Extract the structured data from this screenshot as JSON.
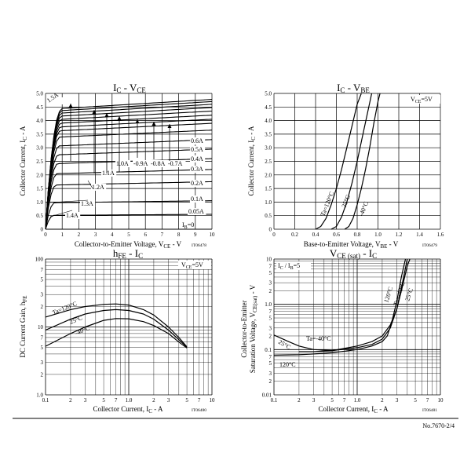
{
  "footer": {
    "doc_no": "No.7670-2/4"
  },
  "chart_data": [
    {
      "type": "line",
      "title": "IC - VCE",
      "title_base": "I",
      "title_sub1": "C",
      "title_dash": " - V",
      "title_sub2": "CE",
      "xlabel_pre": "Collector-to-Emitter Voltage, V",
      "xlabel_sub": "CE",
      "xlabel_post": " - V",
      "ylabel_pre": "Collector Current, I",
      "ylabel_sub": "C",
      "ylabel_post": " - A",
      "code": "IT06478",
      "xlim": [
        0,
        10
      ],
      "ylim": [
        0,
        5
      ],
      "x_ticks": [
        "0",
        "1",
        "2",
        "3",
        "4",
        "5",
        "6",
        "7",
        "8",
        "9",
        "10"
      ],
      "y_ticks": [
        "0",
        "0.5",
        "1.0",
        "1.5",
        "2.0",
        "2.5",
        "3.0",
        "3.5",
        "4.0",
        "4.5",
        "5.0"
      ],
      "grid": true,
      "series": [
        {
          "name": "1.5A",
          "ic": 4.78
        },
        {
          "name": "1.4A",
          "ic": 4.7
        },
        {
          "name": "1.3A",
          "ic": 4.6
        },
        {
          "name": "1.2A",
          "ic": 4.48
        },
        {
          "name": "1.1A",
          "ic": 4.35
        },
        {
          "name": "1.0A",
          "ic": 4.2
        },
        {
          "name": "0.9A",
          "ic": 4.05
        },
        {
          "name": "0.8A",
          "ic": 3.9
        },
        {
          "name": "0.7A",
          "ic": 3.65
        },
        {
          "name": "0.6A",
          "ic": 3.3
        },
        {
          "name": "0.5A",
          "ic": 2.95
        },
        {
          "name": "0.4A",
          "ic": 2.6
        },
        {
          "name": "0.3A",
          "ic": 2.2
        },
        {
          "name": "0.2A",
          "ic": 1.75
        },
        {
          "name": "0.1A",
          "ic": 1.05
        },
        {
          "name": "0.05A",
          "ic": 0.55
        },
        {
          "name": "IB=0",
          "ic": 0.0
        }
      ],
      "curve_labels": [
        "1.5A",
        "1.4A",
        "1.3A",
        "1.2A",
        "1.1A",
        "1.0A",
        "-0.9A",
        "-0.8A",
        "-0.7A",
        "0.6A",
        "0.5A",
        "0.4A",
        "0.3A",
        "0.2A",
        "0.1A",
        "0.05A"
      ],
      "ib0": {
        "base": "I",
        "sub": "B",
        "post": "=0"
      }
    },
    {
      "type": "line",
      "title": "IC - VBE",
      "title_base": "I",
      "title_sub1": "C",
      "title_dash": " - V",
      "title_sub2": "BE",
      "xlabel_pre": "Base-to-Emitter Voltage, V",
      "xlabel_sub": "BE",
      "xlabel_post": " - V",
      "ylabel_pre": "Collector Current, I",
      "ylabel_sub": "C",
      "ylabel_post": " - A",
      "code": "IT06479",
      "condition": {
        "base": "V",
        "sub": "CE",
        "post": "=5V"
      },
      "xlim": [
        0,
        1.6
      ],
      "ylim": [
        0,
        5
      ],
      "x_ticks": [
        "0",
        "0.2",
        "0.4",
        "0.6",
        "0.8",
        "1.0",
        "1.2",
        "1.4",
        "1.6"
      ],
      "y_ticks": [
        "0",
        "0.5",
        "1.0",
        "1.5",
        "2.0",
        "2.5",
        "3.0",
        "3.5",
        "4.0",
        "4.5",
        "5.0"
      ],
      "grid": true,
      "series": [
        {
          "name": "Ta=120°C",
          "x": [
            0.4,
            0.45,
            0.5,
            0.55,
            0.6,
            0.65,
            0.7,
            0.75,
            0.8,
            0.84
          ],
          "y": [
            0,
            0.1,
            0.4,
            0.9,
            1.5,
            2.2,
            3.0,
            3.8,
            4.6,
            5.0
          ]
        },
        {
          "name": "25°C",
          "x": [
            0.55,
            0.6,
            0.65,
            0.7,
            0.75,
            0.8,
            0.85,
            0.9,
            0.94
          ],
          "y": [
            0,
            0.1,
            0.45,
            1.0,
            1.7,
            2.5,
            3.4,
            4.3,
            5.0
          ]
        },
        {
          "name": "-40°C",
          "x": [
            0.68,
            0.72,
            0.76,
            0.8,
            0.84,
            0.88,
            0.92,
            0.96,
            1.0,
            1.02
          ],
          "y": [
            0,
            0.1,
            0.4,
            0.9,
            1.5,
            2.2,
            3.0,
            3.9,
            4.7,
            5.0
          ]
        }
      ]
    },
    {
      "type": "line",
      "title": "hFE - IC",
      "title_base": "h",
      "title_sub1": "FE",
      "title_dash": " - I",
      "title_sub2": "C",
      "xlabel_pre": "Collector Current, I",
      "xlabel_sub": "C",
      "xlabel_post": " - A",
      "ylabel_pre": "DC Current Gain, h",
      "ylabel_sub": "FE",
      "ylabel_post": "",
      "code": "IT06480",
      "condition": {
        "base": "V",
        "sub": "CE",
        "post": "=5V"
      },
      "x_scale": "log",
      "y_scale": "log",
      "xlim": [
        0.1,
        10
      ],
      "ylim": [
        1,
        100
      ],
      "x_ticks": [
        {
          "v": 0.1,
          "t": "0.1"
        },
        {
          "v": 0.2,
          "t": "2"
        },
        {
          "v": 0.3,
          "t": "3"
        },
        {
          "v": 0.5,
          "t": "5"
        },
        {
          "v": 0.7,
          "t": "7"
        },
        {
          "v": 1,
          "t": "1.0"
        },
        {
          "v": 2,
          "t": "2"
        },
        {
          "v": 3,
          "t": "3"
        },
        {
          "v": 5,
          "t": "5"
        },
        {
          "v": 7,
          "t": "7"
        },
        {
          "v": 10,
          "t": "10"
        }
      ],
      "y_ticks": [
        {
          "v": 1,
          "t": "1.0"
        },
        {
          "v": 2,
          "t": "2"
        },
        {
          "v": 3,
          "t": "3"
        },
        {
          "v": 5,
          "t": "5"
        },
        {
          "v": 7,
          "t": "7"
        },
        {
          "v": 10,
          "t": "10"
        },
        {
          "v": 20,
          "t": "2"
        },
        {
          "v": 30,
          "t": "3"
        },
        {
          "v": 50,
          "t": "5"
        },
        {
          "v": 70,
          "t": "7"
        },
        {
          "v": 100,
          "t": "100"
        }
      ],
      "grid": true,
      "series": [
        {
          "name": "Ta=120°C",
          "x": [
            0.1,
            0.2,
            0.3,
            0.5,
            0.7,
            1.0,
            1.5,
            2,
            3,
            4,
            5
          ],
          "y": [
            14,
            18,
            20,
            21.5,
            21.8,
            21,
            18,
            15,
            10,
            7,
            5.1
          ]
        },
        {
          "name": "25°C",
          "x": [
            0.1,
            0.2,
            0.3,
            0.5,
            0.7,
            1.0,
            1.5,
            2,
            3,
            4,
            5
          ],
          "y": [
            9,
            13,
            15.5,
            17.5,
            18,
            17.5,
            15.5,
            13,
            9,
            6.5,
            5.0
          ]
        },
        {
          "name": "-40°C",
          "x": [
            0.1,
            0.2,
            0.3,
            0.5,
            0.7,
            1.0,
            1.5,
            2,
            3,
            4,
            5
          ],
          "y": [
            5.2,
            8,
            10,
            12.5,
            13.3,
            13.2,
            12,
            10.5,
            8,
            6,
            4.9
          ]
        }
      ]
    },
    {
      "type": "line",
      "title": "VCE (sat) - IC",
      "title_base": "V",
      "title_sub1": "CE (sat)",
      "title_dash": " - I",
      "title_sub2": "C",
      "xlabel_pre": "Collector Current, I",
      "xlabel_sub": "C",
      "xlabel_post": " - A",
      "ylabel1": "Collector-to-Emitter",
      "ylabel_pre": "Saturation Voltage, V",
      "ylabel_sub": "CE(sat)",
      "ylabel_post": " - V",
      "code": "IT06481",
      "condition": {
        "base": "I",
        "sub": "C",
        "mid": " / I",
        "sub2": "B",
        "post": "=5"
      },
      "x_scale": "log",
      "y_scale": "log",
      "xlim": [
        0.1,
        10
      ],
      "ylim": [
        0.01,
        10
      ],
      "x_ticks": [
        {
          "v": 0.1,
          "t": "0.1"
        },
        {
          "v": 0.2,
          "t": "2"
        },
        {
          "v": 0.3,
          "t": "3"
        },
        {
          "v": 0.5,
          "t": "5"
        },
        {
          "v": 0.7,
          "t": "7"
        },
        {
          "v": 1,
          "t": "1.0"
        },
        {
          "v": 2,
          "t": "2"
        },
        {
          "v": 3,
          "t": "3"
        },
        {
          "v": 5,
          "t": "5"
        },
        {
          "v": 7,
          "t": "7"
        },
        {
          "v": 10,
          "t": "10"
        }
      ],
      "y_ticks": [
        {
          "v": 0.01,
          "t": "0.01"
        },
        {
          "v": 0.02,
          "t": "2"
        },
        {
          "v": 0.03,
          "t": "3"
        },
        {
          "v": 0.05,
          "t": "5"
        },
        {
          "v": 0.07,
          "t": "7"
        },
        {
          "v": 0.1,
          "t": "0.1"
        },
        {
          "v": 0.2,
          "t": "2"
        },
        {
          "v": 0.3,
          "t": "3"
        },
        {
          "v": 0.5,
          "t": "5"
        },
        {
          "v": 0.7,
          "t": "7"
        },
        {
          "v": 1,
          "t": "1.0"
        },
        {
          "v": 2,
          "t": "2"
        },
        {
          "v": 3,
          "t": "3"
        },
        {
          "v": 5,
          "t": "5"
        },
        {
          "v": 7,
          "t": "7"
        },
        {
          "v": 10,
          "t": "10"
        }
      ],
      "grid": true,
      "series": [
        {
          "name": "120°C",
          "x": [
            0.1,
            0.2,
            0.3,
            0.5,
            1.0,
            1.5,
            2.0,
            2.3,
            2.6,
            3.0,
            3.4,
            3.8
          ],
          "y": [
            0.075,
            0.077,
            0.08,
            0.085,
            0.1,
            0.12,
            0.15,
            0.2,
            0.4,
            1.2,
            4,
            10
          ]
        },
        {
          "name": "25°C",
          "x": [
            0.1,
            0.15,
            0.2,
            0.3,
            0.5,
            1.0,
            1.5,
            2.0,
            2.5,
            3.0,
            3.5,
            4.0
          ],
          "y": [
            0.21,
            0.15,
            0.12,
            0.1,
            0.095,
            0.11,
            0.13,
            0.17,
            0.3,
            0.8,
            3,
            10
          ]
        },
        {
          "name": "Ta=-40°C",
          "x": [
            0.2,
            0.3,
            0.5,
            1.0,
            1.5,
            2.0,
            2.5,
            3.0,
            3.5,
            4.0,
            4.3
          ],
          "y": [
            0.09,
            0.09,
            0.095,
            0.12,
            0.15,
            0.2,
            0.35,
            0.8,
            2.5,
            7,
            10
          ]
        }
      ]
    }
  ]
}
